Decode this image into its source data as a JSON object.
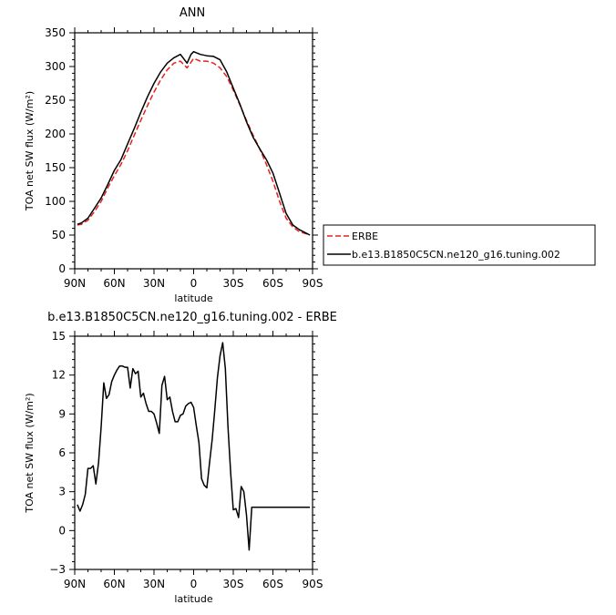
{
  "chart_data": [
    {
      "type": "line",
      "title": "ANN",
      "xlabel": "latitude",
      "ylabel": "TOA net SW flux (W/m²)",
      "xlim": [
        -90,
        90
      ],
      "ylim": [
        0,
        350
      ],
      "x_ticks": [
        -90,
        -60,
        -30,
        0,
        30,
        60,
        90
      ],
      "x_tick_labels": [
        "90N",
        "60N",
        "30N",
        "0",
        "30S",
        "60S",
        "90S"
      ],
      "y_ticks": [
        0,
        50,
        100,
        150,
        200,
        250,
        300,
        350
      ],
      "y_tick_labels": [
        "0",
        "50",
        "100",
        "150",
        "200",
        "250",
        "300",
        "350"
      ],
      "legend_position": "right",
      "series": [
        {
          "name": "ERBE",
          "color": "#e8211b",
          "dash": "dashed",
          "x": [
            -88,
            -85,
            -80,
            -75,
            -70,
            -65,
            -60,
            -55,
            -50,
            -45,
            -40,
            -35,
            -30,
            -25,
            -20,
            -15,
            -10,
            -5,
            0,
            5,
            10,
            15,
            20,
            25,
            30,
            35,
            40,
            45,
            50,
            55,
            60,
            65,
            70,
            75,
            80,
            85,
            88
          ],
          "y": [
            65,
            66,
            72,
            85,
            100,
            120,
            138,
            155,
            175,
            198,
            220,
            242,
            262,
            280,
            295,
            305,
            308,
            298,
            312,
            308,
            308,
            305,
            298,
            285,
            265,
            243,
            220,
            198,
            178,
            155,
            130,
            100,
            75,
            62,
            55,
            52,
            50
          ]
        },
        {
          "name": "b.e13.B1850C5CN.ne120_g16.tuning.002",
          "color": "#000000",
          "dash": "solid",
          "x": [
            -88,
            -85,
            -80,
            -75,
            -70,
            -65,
            -60,
            -55,
            -50,
            -45,
            -40,
            -35,
            -30,
            -25,
            -20,
            -15,
            -10,
            -5,
            -2,
            0,
            5,
            10,
            15,
            20,
            25,
            30,
            35,
            40,
            45,
            50,
            55,
            60,
            65,
            70,
            75,
            80,
            85,
            88
          ],
          "y": [
            66,
            68,
            75,
            90,
            105,
            125,
            146,
            162,
            185,
            208,
            232,
            255,
            275,
            292,
            305,
            313,
            318,
            305,
            318,
            322,
            318,
            316,
            315,
            310,
            292,
            268,
            244,
            218,
            195,
            178,
            162,
            142,
            112,
            82,
            65,
            58,
            53,
            50
          ]
        }
      ]
    },
    {
      "type": "line",
      "title": "b.e13.B1850C5CN.ne120_g16.tuning.002 - ERBE",
      "xlabel": "latitude",
      "ylabel": "TOA net SW flux (W/m²)",
      "xlim": [
        -90,
        90
      ],
      "ylim": [
        -3,
        15
      ],
      "x_ticks": [
        -90,
        -60,
        -30,
        0,
        30,
        60,
        90
      ],
      "x_tick_labels": [
        "90N",
        "60N",
        "30N",
        "0",
        "30S",
        "60S",
        "90S"
      ],
      "y_ticks": [
        -3,
        0,
        3,
        6,
        9,
        12,
        15
      ],
      "y_tick_labels": [
        "−3",
        "0",
        "3",
        "6",
        "9",
        "12",
        "15"
      ],
      "series": [
        {
          "color": "#000000",
          "dash": "solid",
          "x": [
            -88,
            -86,
            -84,
            -82,
            -80,
            -78,
            -76,
            -74,
            -72,
            -70,
            -68,
            -66,
            -64,
            -62,
            -60,
            -58,
            -56,
            -54,
            -52,
            -50,
            -48,
            -46,
            -44,
            -42,
            -40,
            -38,
            -36,
            -34,
            -32,
            -30,
            -28,
            -26,
            -24,
            -22,
            -20,
            -18,
            -16,
            -14,
            -12,
            -10,
            -8,
            -6,
            -4,
            -2,
            0,
            2,
            4,
            6,
            8,
            10,
            12,
            14,
            16,
            18,
            20,
            22,
            24,
            26,
            28,
            30,
            32,
            34,
            36,
            38,
            40,
            42,
            44,
            46,
            48,
            50,
            52,
            54,
            56,
            58,
            60,
            62,
            64,
            66,
            68,
            70,
            72,
            74,
            76,
            78,
            80,
            82,
            84,
            86,
            88
          ],
          "y": [
            2.0,
            1.5,
            2.0,
            2.8,
            4.8,
            4.8,
            5.0,
            3.6,
            5.2,
            8.0,
            11.4,
            10.2,
            10.5,
            11.5,
            12.0,
            12.4,
            12.7,
            12.7,
            12.6,
            12.6,
            11.0,
            12.5,
            12.1,
            12.3,
            10.3,
            10.6,
            9.8,
            9.2,
            9.2,
            9.0,
            8.3,
            7.5,
            11.2,
            11.9,
            10.1,
            10.3,
            9.2,
            8.4,
            8.4,
            8.9,
            9.0,
            9.6,
            9.8,
            9.9,
            9.5,
            8.1,
            6.8,
            4.0,
            3.5,
            3.3,
            5.2,
            7.0,
            9.3,
            11.8,
            13.5,
            14.5,
            12.5,
            8.0,
            4.5,
            1.6,
            1.7,
            1.0,
            3.4,
            3.0,
            1.2,
            -1.5,
            1.8,
            1.8,
            1.8,
            1.8,
            1.8,
            1.8,
            1.8,
            1.8,
            1.8,
            1.8,
            1.8,
            1.8,
            1.8,
            1.8,
            1.8,
            1.8,
            1.8,
            1.8,
            1.8,
            1.8,
            1.8,
            1.8,
            1.8
          ]
        }
      ]
    }
  ]
}
